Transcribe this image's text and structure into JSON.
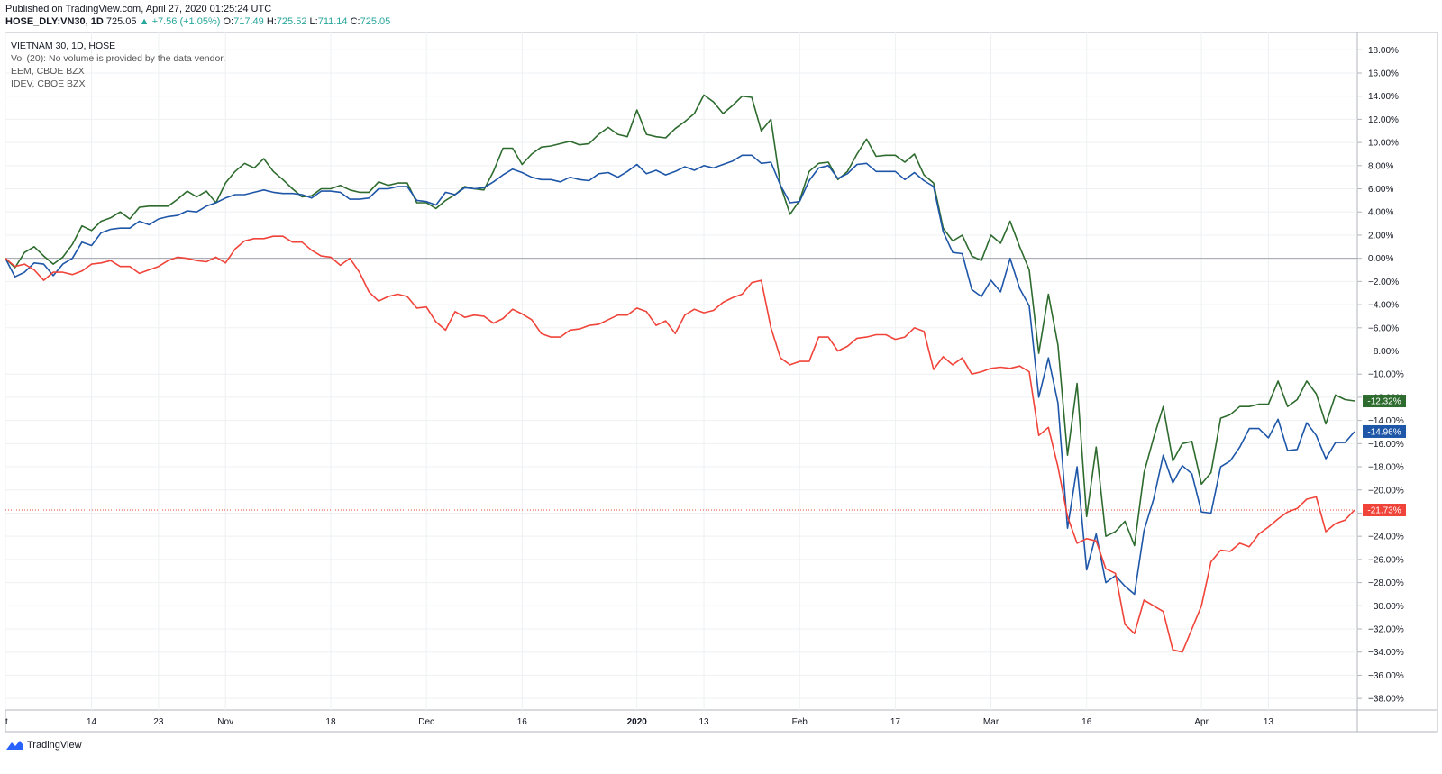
{
  "header": {
    "published": "Published on TradingView.com, April 27, 2020 01:25:24 UTC",
    "symbol": "HOSE_DLY:VN30, 1D",
    "last": "725.05",
    "change": "+7.56 (+1.05%)",
    "open_label": "O:",
    "open": "717.49",
    "high_label": "H:",
    "high": "725.52",
    "low_label": "L:",
    "low": "711.14",
    "close_label": "C:",
    "close": "725.05"
  },
  "legend": {
    "main": "VIETNAM 30, 1D, HOSE",
    "vol": "Vol (20): No volume is provided by the data vendor.",
    "s2": "EEM, CBOE BZX",
    "s3": "IDEV, CBOE BZX"
  },
  "footer": {
    "brand": "TradingView"
  },
  "chart_data": {
    "type": "line",
    "ylim": [
      -39,
      19.5
    ],
    "grid": true,
    "colors": {
      "green": "#2e6b2e",
      "blue": "#1e56a8",
      "red": "#f0443a"
    },
    "x_ticks": [
      {
        "label": "t",
        "i": 0
      },
      {
        "label": "14",
        "i": 9
      },
      {
        "label": "23",
        "i": 16
      },
      {
        "label": "Nov",
        "i": 23
      },
      {
        "label": "18",
        "i": 34
      },
      {
        "label": "Dec",
        "i": 44
      },
      {
        "label": "16",
        "i": 54
      },
      {
        "label": "2020",
        "i": 66
      },
      {
        "label": "13",
        "i": 73
      },
      {
        "label": "Feb",
        "i": 83
      },
      {
        "label": "17",
        "i": 93
      },
      {
        "label": "Mar",
        "i": 103
      },
      {
        "label": "16",
        "i": 113
      },
      {
        "label": "Apr",
        "i": 125
      },
      {
        "label": "13",
        "i": 132
      }
    ],
    "y_ticks": [
      18,
      16,
      14,
      12,
      10,
      8,
      6,
      4,
      2,
      0,
      -2,
      -4,
      -6,
      -8,
      -10,
      -12,
      -14,
      -16,
      -18,
      -20,
      -22,
      -24,
      -26,
      -28,
      -30,
      -32,
      -34,
      -36,
      -38
    ],
    "series": [
      {
        "color": "#2e6b2e",
        "last_label": "-12.32%",
        "values": [
          0,
          -0.8,
          0.5,
          1,
          0.2,
          -0.5,
          0.1,
          1.2,
          2.8,
          2.4,
          3.2,
          3.5,
          4,
          3.4,
          4.4,
          4.5,
          4.5,
          4.5,
          5.1,
          5.8,
          5.3,
          5.8,
          4.8,
          6.5,
          7.5,
          8.2,
          7.8,
          8.6,
          7.5,
          6.8,
          6,
          5.3,
          5.4,
          6,
          6,
          6.3,
          5.9,
          5.7,
          5.7,
          6.6,
          6.3,
          6.5,
          6.5,
          4.8,
          4.8,
          4.3,
          5,
          5.5,
          6.2,
          6,
          5.9,
          7.5,
          9.5,
          9.5,
          8.1,
          9,
          9.6,
          9.7,
          9.9,
          10.1,
          9.8,
          9.9,
          10.7,
          11.3,
          10.7,
          10.5,
          12.8,
          10.7,
          10.5,
          10.4,
          11.2,
          11.8,
          12.5,
          14.1,
          13.5,
          12.5,
          13.2,
          14,
          13.9,
          11,
          12,
          6.3,
          3.8,
          5,
          7.5,
          8.2,
          8.3,
          6.8,
          7.5,
          9,
          10.3,
          8.8,
          8.9,
          8.9,
          8.3,
          9,
          7.2,
          6.5,
          2.6,
          1.5,
          2,
          0.2,
          -0.2,
          2,
          1.3,
          3.2,
          1,
          -1,
          -8.2,
          -3.1,
          -7.5,
          -17,
          -10.8,
          -22.3,
          -16.3,
          -24,
          -23.6,
          -22.7,
          -24.8,
          -18.5,
          -15.5,
          -12.8,
          -17.5,
          -16,
          -15.8,
          -19.5,
          -18.5,
          -13.8,
          -13.5,
          -12.8,
          -12.8,
          -12.6,
          -12.6,
          -10.6,
          -12.8,
          -12.2,
          -10.6,
          -11.7,
          -14.3,
          -11.8,
          -12.2,
          -12.32
        ]
      },
      {
        "color": "#1e56a8",
        "last_label": "-14.96%",
        "values": [
          0,
          -1.6,
          -1.2,
          -0.4,
          -0.5,
          -1.5,
          -0.5,
          0,
          1.4,
          1.1,
          2.2,
          2.5,
          2.6,
          2.6,
          3.2,
          2.9,
          3.4,
          3.6,
          3.7,
          4.1,
          4,
          4.5,
          4.8,
          5.2,
          5.5,
          5.5,
          5.7,
          5.9,
          5.7,
          5.6,
          5.6,
          5.5,
          5.2,
          5.8,
          5.8,
          5.7,
          5.1,
          5.1,
          5.2,
          6,
          6,
          6.2,
          6.2,
          5,
          4.9,
          4.6,
          5.7,
          5.5,
          6.1,
          6,
          6.1,
          6.6,
          7.2,
          7.7,
          7.4,
          7,
          6.8,
          6.8,
          6.6,
          7,
          6.8,
          6.7,
          7.3,
          7.4,
          7,
          7.5,
          8.1,
          7.3,
          7.6,
          7.2,
          7.5,
          7.9,
          7.6,
          8,
          7.8,
          8.1,
          8.4,
          8.9,
          8.9,
          8.2,
          8.3,
          6.3,
          4.8,
          4.9,
          6.7,
          7.8,
          8,
          6.9,
          7.3,
          8.1,
          8.2,
          7.5,
          7.5,
          7.5,
          6.8,
          7.4,
          6.7,
          6.2,
          2.3,
          0.5,
          0.4,
          -2.7,
          -3.3,
          -1.9,
          -2.9,
          0,
          -2.6,
          -4.1,
          -12,
          -8.6,
          -12.5,
          -23.3,
          -18,
          -26.9,
          -23.8,
          -28,
          -27.4,
          -28.3,
          -29,
          -23.5,
          -20.8,
          -17,
          -19.4,
          -17.9,
          -18.6,
          -21.9,
          -22,
          -18,
          -17.5,
          -16.3,
          -14.7,
          -14.7,
          -15.5,
          -13.9,
          -16.6,
          -16.5,
          -14.2,
          -15.3,
          -17.3,
          -15.9,
          -15.9,
          -14.96
        ]
      },
      {
        "color": "#f0443a",
        "last_label": "-21.73%",
        "values": [
          0,
          -0.7,
          -0.5,
          -1,
          -1.9,
          -1.2,
          -1.2,
          -1.4,
          -1.1,
          -0.5,
          -0.4,
          -0.2,
          -0.7,
          -0.7,
          -1.3,
          -1,
          -0.7,
          -0.2,
          0.1,
          0,
          -0.2,
          -0.3,
          0.1,
          -0.4,
          0.8,
          1.5,
          1.7,
          1.7,
          1.9,
          1.9,
          1.4,
          1.4,
          0.7,
          0.2,
          0.1,
          -0.6,
          0,
          -1.2,
          -2.9,
          -3.7,
          -3.3,
          -3.1,
          -3.3,
          -4.3,
          -4.2,
          -5.5,
          -6.2,
          -4.6,
          -5.1,
          -4.9,
          -5,
          -5.6,
          -5.2,
          -4.4,
          -4.8,
          -5.3,
          -6.5,
          -6.8,
          -6.8,
          -6.2,
          -6.1,
          -5.8,
          -5.7,
          -5.3,
          -4.9,
          -4.9,
          -4.3,
          -4.6,
          -5.8,
          -5.4,
          -6.5,
          -4.9,
          -4.4,
          -4.7,
          -4.5,
          -3.8,
          -3.4,
          -3.1,
          -2.1,
          -1.9,
          -6,
          -8.6,
          -9.2,
          -8.9,
          -8.9,
          -6.8,
          -6.8,
          -8,
          -7.6,
          -6.9,
          -6.8,
          -6.6,
          -6.6,
          -7,
          -6.8,
          -6,
          -6.3,
          -9.6,
          -8.5,
          -9.2,
          -8.6,
          -10,
          -9.8,
          -9.5,
          -9.4,
          -9.5,
          -9.3,
          -9.8,
          -15.3,
          -14.6,
          -18,
          -22.3,
          -24.6,
          -24.2,
          -24.4,
          -26.8,
          -27.2,
          -31.6,
          -32.4,
          -29.5,
          -30,
          -30.5,
          -33.8,
          -34,
          -32,
          -30,
          -26.2,
          -25.2,
          -25.3,
          -24.6,
          -24.9,
          -23.8,
          -23.2,
          -22.5,
          -21.9,
          -21.6,
          -20.8,
          -20.6,
          -23.6,
          -22.9,
          -22.6,
          -21.73
        ]
      }
    ]
  }
}
